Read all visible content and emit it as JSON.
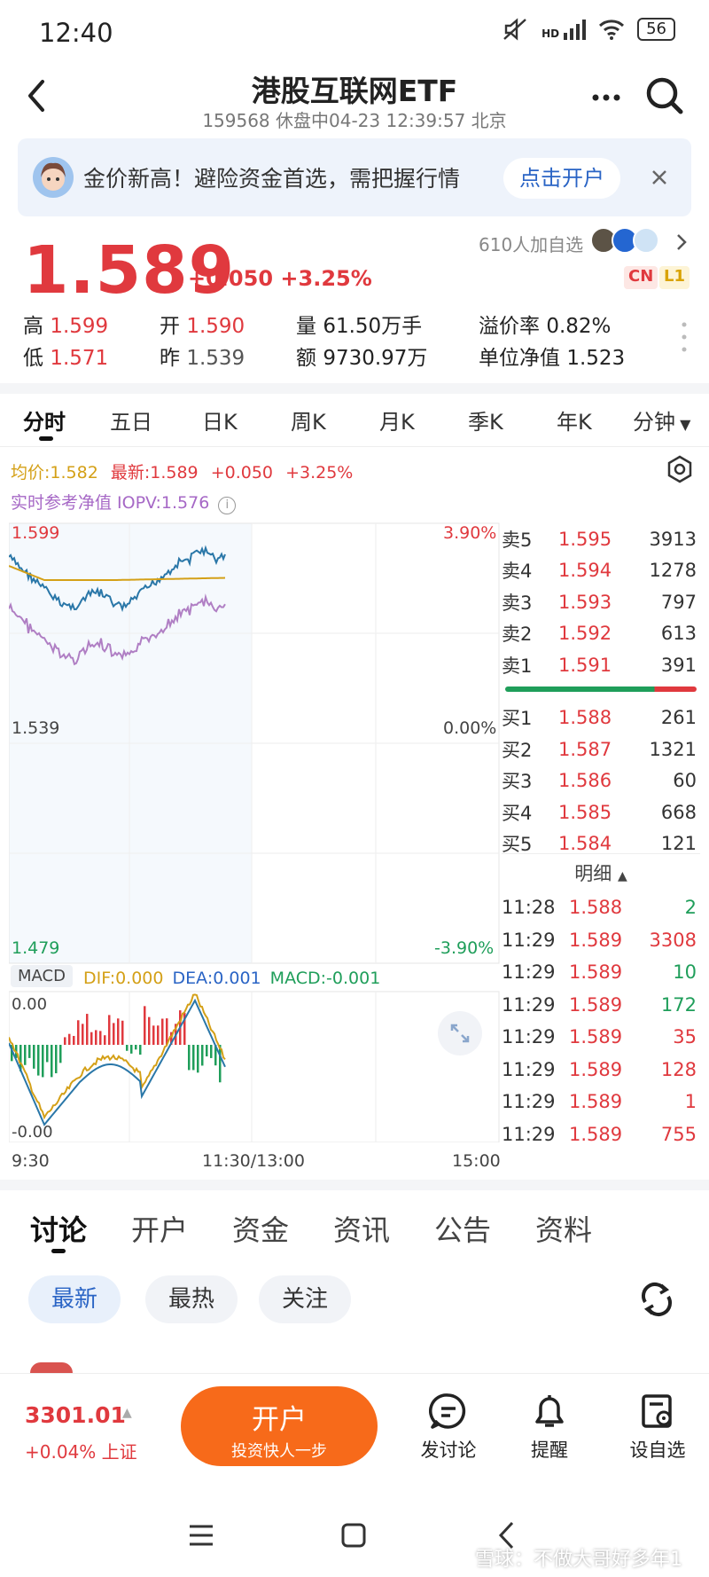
{
  "status_bar": {
    "time": "12:40",
    "net": "HD",
    "battery": "56"
  },
  "header": {
    "title": "港股互联网ETF",
    "subtitle": "159568 休盘中04-23 12:39:57 北京"
  },
  "banner": {
    "text": "金价新高！避险资金首选，需把握行情",
    "button": "点击开户"
  },
  "quote": {
    "price": "1.589",
    "change": "+0.050",
    "change_pct": "+3.25%",
    "followers": "610人加自选",
    "tag_cn": "CN",
    "tag_l1": "L1",
    "high_label": "高",
    "high": "1.599",
    "open_label": "开",
    "open": "1.590",
    "vol_label": "量",
    "vol": "61.50万手",
    "premium_label": "溢价率",
    "premium": "0.82%",
    "low_label": "低",
    "low": "1.571",
    "prev_label": "昨",
    "prev": "1.539",
    "amt_label": "额",
    "amt": "9730.97万",
    "nav_label": "单位净值",
    "nav": "1.523"
  },
  "tabs": [
    "分时",
    "五日",
    "日K",
    "周K",
    "月K",
    "季K",
    "年K",
    "分钟"
  ],
  "chart_info": {
    "avg": "均价:1.582",
    "last": "最新:1.589",
    "chg": "+0.050",
    "pct": "+3.25%",
    "iopv": "实时参考净值 IOPV:1.576"
  },
  "chart_labels": {
    "top_price": "1.599",
    "top_pct": "3.90%",
    "mid_price": "1.539",
    "mid_pct": "0.00%",
    "bot_price": "1.479",
    "bot_pct": "-3.90%",
    "macd_tag": "MACD",
    "dif": "DIF:0.000",
    "dea": "DEA:0.001",
    "macd": "MACD:-0.001",
    "macd_top": "0.00",
    "macd_bot": "-0.00",
    "t1": "9:30",
    "t2": "11:30/13:00",
    "t3": "15:00"
  },
  "orderbook": {
    "asks": [
      {
        "label": "卖5",
        "price": "1.595",
        "vol": "3913"
      },
      {
        "label": "卖4",
        "price": "1.594",
        "vol": "1278"
      },
      {
        "label": "卖3",
        "price": "1.593",
        "vol": "797"
      },
      {
        "label": "卖2",
        "price": "1.592",
        "vol": "613"
      },
      {
        "label": "卖1",
        "price": "1.591",
        "vol": "391"
      }
    ],
    "bids": [
      {
        "label": "买1",
        "price": "1.588",
        "vol": "261"
      },
      {
        "label": "买2",
        "price": "1.587",
        "vol": "1321"
      },
      {
        "label": "买3",
        "price": "1.586",
        "vol": "60"
      },
      {
        "label": "买4",
        "price": "1.585",
        "vol": "668"
      },
      {
        "label": "买5",
        "price": "1.584",
        "vol": "121"
      }
    ],
    "detail_title": "明细",
    "details": [
      {
        "t": "11:28",
        "p": "1.588",
        "v": "2",
        "c": "green"
      },
      {
        "t": "11:29",
        "p": "1.589",
        "v": "3308",
        "c": "red"
      },
      {
        "t": "11:29",
        "p": "1.589",
        "v": "10",
        "c": "green"
      },
      {
        "t": "11:29",
        "p": "1.589",
        "v": "172",
        "c": "green"
      },
      {
        "t": "11:29",
        "p": "1.589",
        "v": "35",
        "c": "red"
      },
      {
        "t": "11:29",
        "p": "1.589",
        "v": "128",
        "c": "red"
      },
      {
        "t": "11:29",
        "p": "1.589",
        "v": "1",
        "c": "red"
      },
      {
        "t": "11:29",
        "p": "1.589",
        "v": "755",
        "c": "red"
      }
    ]
  },
  "bottom_tabs": [
    "讨论",
    "开户",
    "资金",
    "资讯",
    "公告",
    "资料"
  ],
  "filters": [
    "最新",
    "最热",
    "关注"
  ],
  "bottombar": {
    "index_value": "3301.01",
    "index_change": "+0.04% 上证",
    "open_btn": "开户",
    "open_sub": "投资快人一步",
    "discuss": "发讨论",
    "remind": "提醒",
    "watch": "设自选"
  },
  "watermark": "雪球：不做大哥好多年1",
  "colors": {
    "red": "#e0393e",
    "green": "#1f9e5a",
    "orange": "#f76a1a",
    "blue": "#2a64c5"
  }
}
